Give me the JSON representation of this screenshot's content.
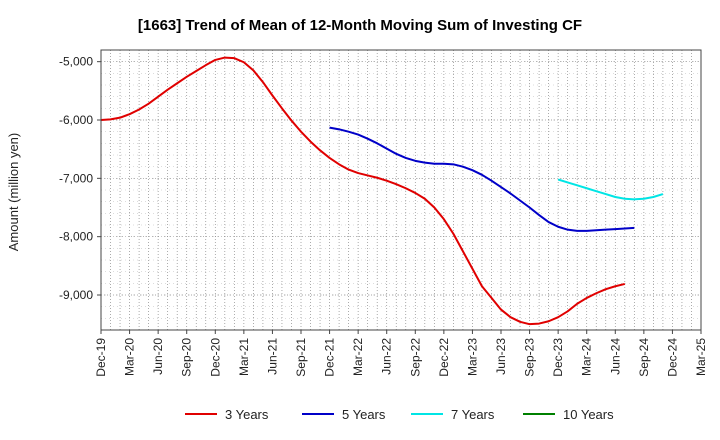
{
  "chart_data": {
    "type": "line",
    "title": "[1663]  Trend of Mean of 12-Month Moving Sum of Investing CF",
    "xlabel": "",
    "ylabel": "Amount (million yen)",
    "ylim": [
      -9600,
      -4800
    ],
    "yticks": [
      -5000,
      -6000,
      -7000,
      -8000,
      -9000
    ],
    "ytick_labels": [
      "-5,000",
      "-6,000",
      "-7,000",
      "-8,000",
      "-9,000"
    ],
    "xticks": [
      "Dec-19",
      "Mar-20",
      "Jun-20",
      "Sep-20",
      "Dec-20",
      "Mar-21",
      "Jun-21",
      "Sep-21",
      "Dec-21",
      "Mar-22",
      "Jun-22",
      "Sep-22",
      "Dec-22",
      "Mar-23",
      "Jun-23",
      "Sep-23",
      "Dec-23",
      "Mar-24",
      "Jun-24",
      "Sep-24",
      "Dec-24",
      "Mar-25"
    ],
    "grid": true,
    "legend_position": "bottom",
    "series": [
      {
        "name": "3 Years",
        "color": "#e00000",
        "x_start": "Dec-19",
        "values": [
          -6000,
          -5990,
          -5960,
          -5900,
          -5820,
          -5720,
          -5600,
          -5480,
          -5370,
          -5260,
          -5160,
          -5060,
          -4970,
          -4930,
          -4940,
          -5010,
          -5150,
          -5350,
          -5580,
          -5800,
          -6010,
          -6200,
          -6370,
          -6520,
          -6650,
          -6760,
          -6850,
          -6910,
          -6950,
          -6990,
          -7040,
          -7100,
          -7170,
          -7250,
          -7350,
          -7500,
          -7700,
          -7950,
          -8250,
          -8550,
          -8850,
          -9050,
          -9250,
          -9380,
          -9460,
          -9500,
          -9490,
          -9450,
          -9380,
          -9280,
          -9150,
          -9050,
          -8970,
          -8900,
          -8850,
          -8810
        ]
      },
      {
        "name": "5 Years",
        "color": "#0000c8",
        "x_start": "Dec-21",
        "values": [
          -6130,
          -6160,
          -6200,
          -6250,
          -6320,
          -6400,
          -6490,
          -6580,
          -6650,
          -6700,
          -6730,
          -6750,
          -6750,
          -6760,
          -6800,
          -6860,
          -6940,
          -7040,
          -7150,
          -7260,
          -7380,
          -7500,
          -7630,
          -7750,
          -7830,
          -7880,
          -7900,
          -7900,
          -7890,
          -7880,
          -7870,
          -7860,
          -7850
        ]
      },
      {
        "name": "7 Years",
        "color": "#00e5e5",
        "x_start": "Dec-23",
        "values": [
          -7020,
          -7070,
          -7120,
          -7170,
          -7220,
          -7270,
          -7320,
          -7350,
          -7360,
          -7350,
          -7320,
          -7270
        ]
      },
      {
        "name": "10 Years",
        "color": "#008000",
        "x_start": "Dec-24",
        "values": []
      }
    ]
  }
}
